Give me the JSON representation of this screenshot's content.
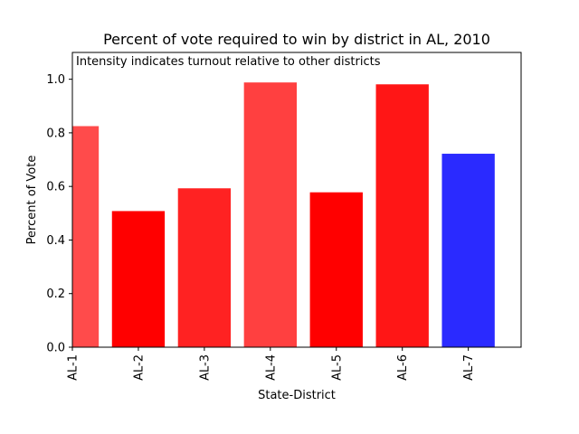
{
  "chart_data": {
    "type": "bar",
    "title": "Percent of vote required to win by district in AL, 2010",
    "annotation": "Intensity indicates turnout relative to other districts",
    "xlabel": "State-District",
    "ylabel": "Percent of Vote",
    "categories": [
      "AL-1",
      "AL-2",
      "AL-3",
      "AL-4",
      "AL-5",
      "AL-6",
      "AL-7"
    ],
    "values": [
      0.825,
      0.508,
      0.593,
      0.988,
      0.578,
      0.981,
      0.722
    ],
    "bar_colors": [
      "#ff4b4b",
      "#ff0000",
      "#ff2222",
      "#ff4040",
      "#ff0000",
      "#ff1616",
      "#2a2aff"
    ],
    "ylim": [
      0,
      1.1
    ],
    "yticks": [
      "0.0",
      "0.2",
      "0.4",
      "0.6",
      "0.8",
      "1.0"
    ],
    "grid": false,
    "legend": "none"
  }
}
